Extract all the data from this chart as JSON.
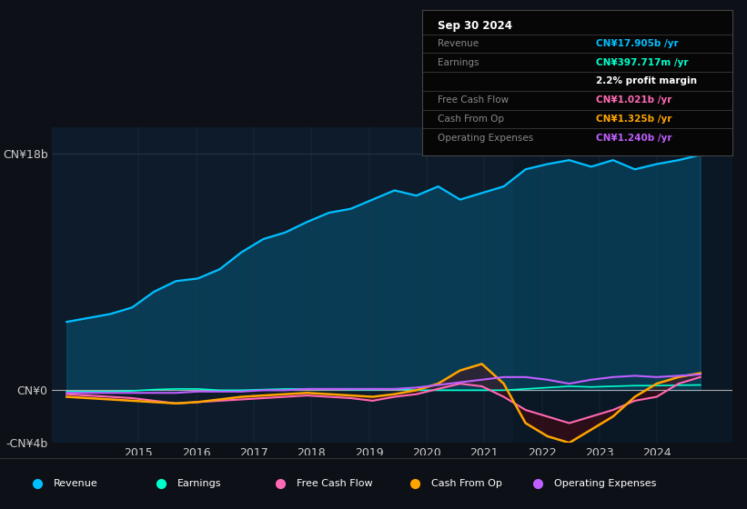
{
  "bg_color": "#0d1117",
  "plot_bg_color": "#0d1b2a",
  "title": "Sep 30 2024",
  "ylim": [
    -4000000000,
    20000000000
  ],
  "ytick_neg_val": -4000000000,
  "ytick_neg_label": "-CN¥4b",
  "ytick_labels": [
    "CN¥0",
    "CN¥18b"
  ],
  "ytick_vals": [
    0,
    18000000000
  ],
  "xlabel_years": [
    "2015",
    "2016",
    "2017",
    "2018",
    "2019",
    "2020",
    "2021",
    "2022",
    "2023",
    "2024"
  ],
  "legend": [
    {
      "label": "Revenue",
      "color": "#00bfff"
    },
    {
      "label": "Earnings",
      "color": "#00ffcc"
    },
    {
      "label": "Free Cash Flow",
      "color": "#ff69b4"
    },
    {
      "label": "Cash From Op",
      "color": "#ffa500"
    },
    {
      "label": "Operating Expenses",
      "color": "#bf5fff"
    }
  ],
  "info_rows": [
    {
      "label": "Revenue",
      "value": "CN¥17.905b /yr",
      "label_color": "#888888",
      "value_color": "#00bfff"
    },
    {
      "label": "Earnings",
      "value": "CN¥397.717m /yr",
      "label_color": "#888888",
      "value_color": "#00ffcc"
    },
    {
      "label": "",
      "value": "2.2% profit margin",
      "label_color": "#888888",
      "value_color": "#ffffff"
    },
    {
      "label": "Free Cash Flow",
      "value": "CN¥1.021b /yr",
      "label_color": "#888888",
      "value_color": "#ff69b4"
    },
    {
      "label": "Cash From Op",
      "value": "CN¥1.325b /yr",
      "label_color": "#888888",
      "value_color": "#ffa500"
    },
    {
      "label": "Operating Expenses",
      "value": "CN¥1.240b /yr",
      "label_color": "#888888",
      "value_color": "#bf5fff"
    }
  ],
  "revenue": [
    5200000000,
    5500000000,
    5800000000,
    6300000000,
    7500000000,
    8300000000,
    8500000000,
    9200000000,
    10500000000,
    11500000000,
    12000000000,
    12800000000,
    13500000000,
    13800000000,
    14500000000,
    15200000000,
    14800000000,
    15500000000,
    14500000000,
    15000000000,
    15500000000,
    16800000000,
    17200000000,
    17500000000,
    17000000000,
    17500000000,
    16800000000,
    17200000000,
    17500000000,
    17900000000
  ],
  "earnings": [
    -100000000,
    -100000000,
    -100000000,
    -50000000,
    50000000,
    100000000,
    100000000,
    0,
    0,
    50000000,
    100000000,
    100000000,
    100000000,
    50000000,
    50000000,
    100000000,
    0,
    0,
    0,
    0,
    0,
    100000000,
    200000000,
    300000000,
    250000000,
    300000000,
    350000000,
    350000000,
    380000000,
    400000000
  ],
  "free_cash_flow": [
    -300000000,
    -400000000,
    -500000000,
    -600000000,
    -800000000,
    -1000000000,
    -900000000,
    -800000000,
    -700000000,
    -600000000,
    -500000000,
    -400000000,
    -500000000,
    -600000000,
    -800000000,
    -500000000,
    -300000000,
    100000000,
    500000000,
    300000000,
    -500000000,
    -1500000000,
    -2000000000,
    -2500000000,
    -2000000000,
    -1500000000,
    -800000000,
    -500000000,
    500000000,
    1000000000
  ],
  "cash_from_op": [
    -500000000,
    -600000000,
    -700000000,
    -800000000,
    -900000000,
    -1000000000,
    -900000000,
    -700000000,
    -500000000,
    -400000000,
    -300000000,
    -200000000,
    -300000000,
    -400000000,
    -500000000,
    -300000000,
    0,
    500000000,
    1500000000,
    2000000000,
    500000000,
    -2500000000,
    -3500000000,
    -4000000000,
    -3000000000,
    -2000000000,
    -500000000,
    500000000,
    1000000000,
    1300000000
  ],
  "operating_expenses": [
    -200000000,
    -200000000,
    -200000000,
    -200000000,
    -200000000,
    -200000000,
    -100000000,
    -100000000,
    -100000000,
    0,
    0,
    100000000,
    100000000,
    100000000,
    100000000,
    100000000,
    200000000,
    400000000,
    600000000,
    800000000,
    1000000000,
    1000000000,
    800000000,
    500000000,
    800000000,
    1000000000,
    1100000000,
    1000000000,
    1100000000,
    1200000000
  ]
}
